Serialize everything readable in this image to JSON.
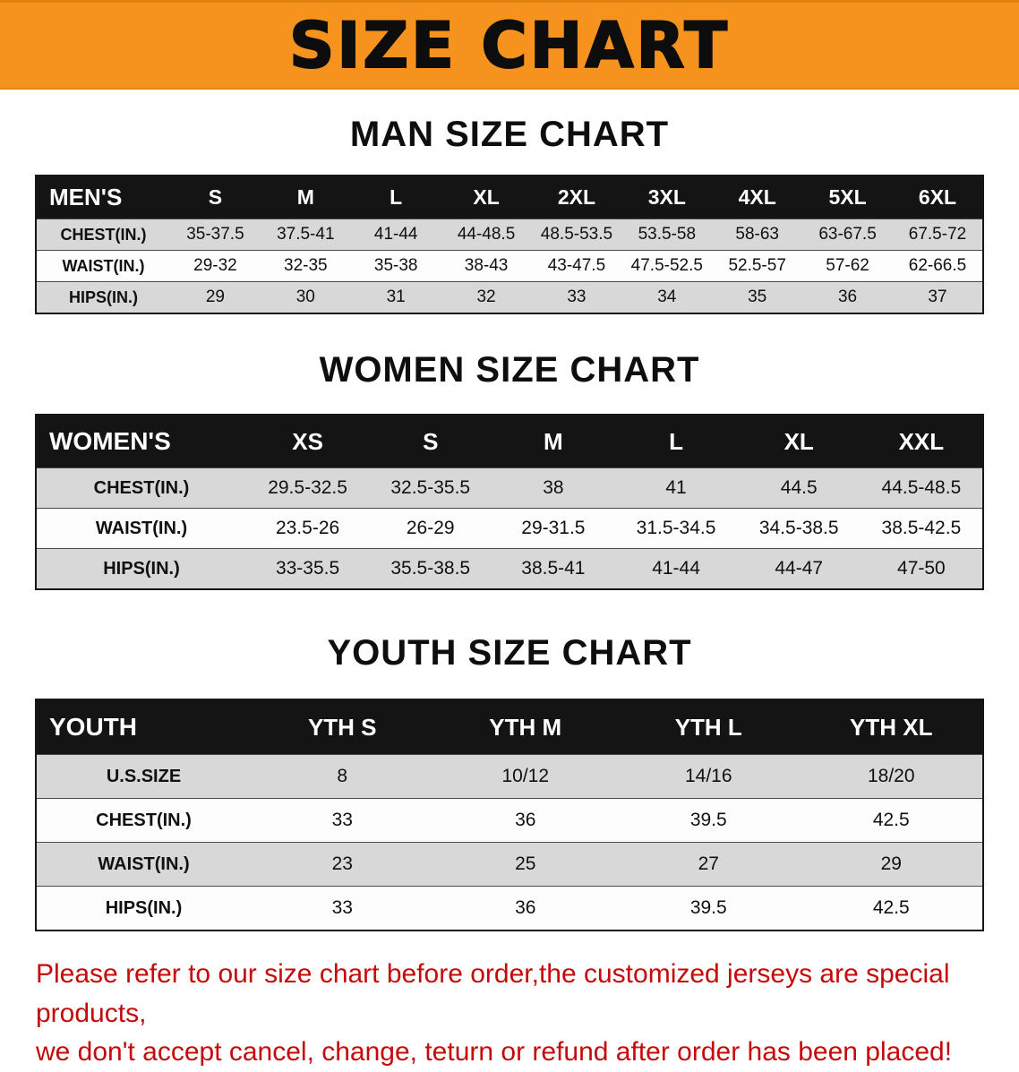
{
  "banner": {
    "title": "SIZE CHART",
    "bg_color": "#F6921E",
    "text_color": "#0D0D0D"
  },
  "sections": {
    "men": {
      "heading": "MAN SIZE CHART",
      "table": {
        "header": [
          "MEN'S",
          "S",
          "M",
          "L",
          "XL",
          "2XL",
          "3XL",
          "4XL",
          "5XL",
          "6XL"
        ],
        "rows": [
          [
            "CHEST(IN.)",
            "35-37.5",
            "37.5-41",
            "41-44",
            "44-48.5",
            "48.5-53.5",
            "53.5-58",
            "58-63",
            "63-67.5",
            "67.5-72"
          ],
          [
            "WAIST(IN.)",
            "29-32",
            "32-35",
            "35-38",
            "38-43",
            "43-47.5",
            "47.5-52.5",
            "52.5-57",
            "57-62",
            "62-66.5"
          ],
          [
            "HIPS(IN.)",
            "29",
            "30",
            "31",
            "32",
            "33",
            "34",
            "35",
            "36",
            "37"
          ]
        ]
      }
    },
    "women": {
      "heading": "WOMEN SIZE CHART",
      "table": {
        "header": [
          "WOMEN'S",
          "XS",
          "S",
          "M",
          "L",
          "XL",
          "XXL"
        ],
        "rows": [
          [
            "CHEST(IN.)",
            "29.5-32.5",
            "32.5-35.5",
            "38",
            "41",
            "44.5",
            "44.5-48.5"
          ],
          [
            "WAIST(IN.)",
            "23.5-26",
            "26-29",
            "29-31.5",
            "31.5-34.5",
            "34.5-38.5",
            "38.5-42.5"
          ],
          [
            "HIPS(IN.)",
            "33-35.5",
            "35.5-38.5",
            "38.5-41",
            "41-44",
            "44-47",
            "47-50"
          ]
        ]
      }
    },
    "youth": {
      "heading": "YOUTH SIZE CHART",
      "table": {
        "header": [
          "YOUTH",
          "YTH S",
          "YTH M",
          "YTH L",
          "YTH XL"
        ],
        "rows": [
          [
            "U.S.SIZE",
            "8",
            "10/12",
            "14/16",
            "18/20"
          ],
          [
            "CHEST(IN.)",
            "33",
            "36",
            "39.5",
            "42.5"
          ],
          [
            "WAIST(IN.)",
            "23",
            "25",
            "27",
            "29"
          ],
          [
            "HIPS(IN.)",
            "33",
            "36",
            "39.5",
            "42.5"
          ]
        ]
      }
    }
  },
  "footer": {
    "line1": "Please refer to our size chart before order,the customized jerseys are special products,",
    "line2": "we don't accept cancel, change, teturn or refund after order has been placed!",
    "text_color": "#C40A0A"
  }
}
